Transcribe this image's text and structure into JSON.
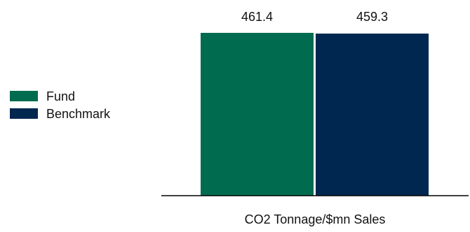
{
  "chart_data": {
    "type": "bar",
    "categories": [
      "CO2 Tonnage/$mn Sales"
    ],
    "series": [
      {
        "name": "Fund",
        "values": [
          461.4
        ],
        "color": "#006B4F"
      },
      {
        "name": "Benchmark",
        "values": [
          459.3
        ],
        "color": "#00274F"
      }
    ],
    "data_labels": [
      "461.4",
      "459.3"
    ],
    "ylim": [
      0,
      461.4
    ],
    "grid": false,
    "legend_placement": "left"
  }
}
